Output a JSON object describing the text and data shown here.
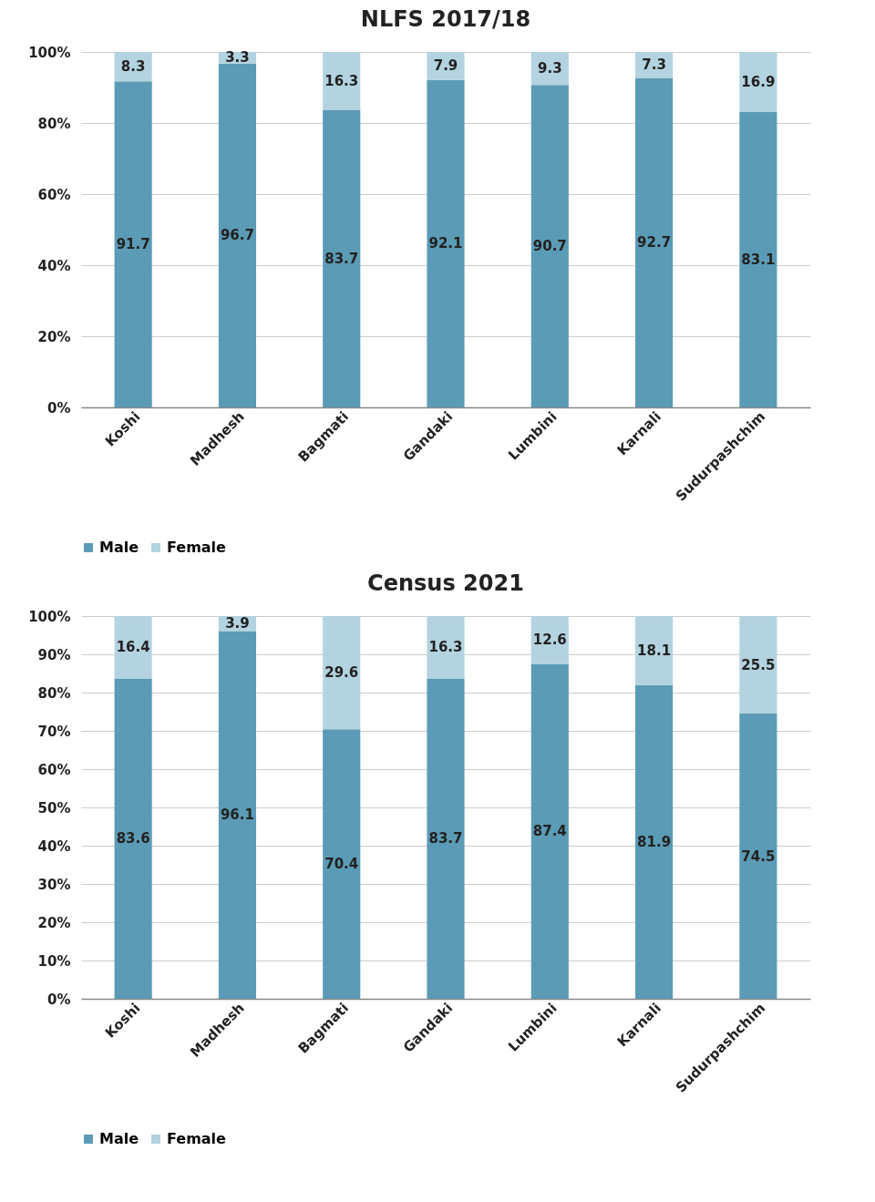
{
  "chart_data": [
    {
      "type": "bar",
      "title": "NLFS 2017/18",
      "categories": [
        "Koshi",
        "Madhesh",
        "Bagmati",
        "Gandaki",
        "Lumbini",
        "Karnali",
        "Sudurpashchim"
      ],
      "stacked": true,
      "data_labels": true,
      "grid": "y",
      "legend": "bottom",
      "ylim": [
        0,
        100
      ],
      "yticks": [
        {
          "value": 0,
          "label": "0%"
        },
        {
          "value": 20,
          "label": "20%"
        },
        {
          "value": 40,
          "label": "40%"
        },
        {
          "value": 60,
          "label": "60%"
        },
        {
          "value": 80,
          "label": "80%"
        },
        {
          "value": 100,
          "label": "100%"
        }
      ],
      "series": [
        {
          "name": "Male",
          "color": "#5b9bb5",
          "values": [
            91.7,
            96.7,
            83.7,
            92.1,
            90.7,
            92.7,
            83.1
          ]
        },
        {
          "name": "Female",
          "color": "#b3d3e0",
          "values": [
            8.3,
            3.3,
            16.3,
            7.9,
            9.3,
            7.3,
            16.9
          ]
        }
      ]
    },
    {
      "type": "bar",
      "title": "Census 2021",
      "categories": [
        "Koshi",
        "Madhesh",
        "Bagmati",
        "Gandaki",
        "Lumbini",
        "Karnali",
        "Sudurpashchim"
      ],
      "stacked": true,
      "data_labels": true,
      "grid": "y",
      "legend": "bottom",
      "ylim": [
        0,
        100
      ],
      "yticks": [
        {
          "value": 0,
          "label": "0%"
        },
        {
          "value": 10,
          "label": "10%"
        },
        {
          "value": 20,
          "label": "20%"
        },
        {
          "value": 30,
          "label": "30%"
        },
        {
          "value": 40,
          "label": "40%"
        },
        {
          "value": 50,
          "label": "50%"
        },
        {
          "value": 60,
          "label": "60%"
        },
        {
          "value": 70,
          "label": "70%"
        },
        {
          "value": 80,
          "label": "80%"
        },
        {
          "value": 90,
          "label": "90%"
        },
        {
          "value": 100,
          "label": "100%"
        }
      ],
      "series": [
        {
          "name": "Male",
          "color": "#5b9bb5",
          "values": [
            83.6,
            96.1,
            70.4,
            83.7,
            87.4,
            81.9,
            74.5
          ]
        },
        {
          "name": "Female",
          "color": "#b3d3e0",
          "values": [
            16.4,
            3.9,
            29.6,
            16.3,
            12.6,
            18.1,
            25.5
          ]
        }
      ]
    }
  ]
}
